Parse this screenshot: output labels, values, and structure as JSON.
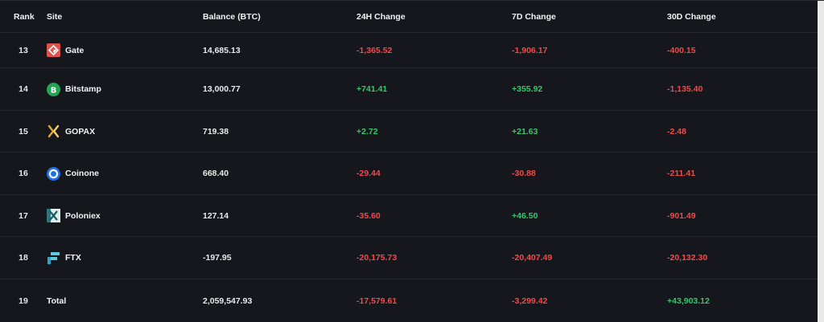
{
  "table": {
    "headers": {
      "rank": "Rank",
      "site": "Site",
      "balance": "Balance (BTC)",
      "change24h": "24H Change",
      "change7d": "7D Change",
      "change30d": "30D Change"
    },
    "rows": [
      {
        "rank": "13",
        "site": "Gate",
        "icon": "gate-icon",
        "balance": "14,685.13",
        "change24h": "-1,365.52",
        "change7d": "-1,906.17",
        "change30d": "-400.15"
      },
      {
        "rank": "14",
        "site": "Bitstamp",
        "icon": "bitstamp-icon",
        "balance": "13,000.77",
        "change24h": "+741.41",
        "change7d": "+355.92",
        "change30d": "-1,135.40"
      },
      {
        "rank": "15",
        "site": "GOPAX",
        "icon": "gopax-icon",
        "balance": "719.38",
        "change24h": "+2.72",
        "change7d": "+21.63",
        "change30d": "-2.48"
      },
      {
        "rank": "16",
        "site": "Coinone",
        "icon": "coinone-icon",
        "balance": "668.40",
        "change24h": "-29.44",
        "change7d": "-30.88",
        "change30d": "-211.41"
      },
      {
        "rank": "17",
        "site": "Poloniex",
        "icon": "poloniex-icon",
        "balance": "127.14",
        "change24h": "-35.60",
        "change7d": "+46.50",
        "change30d": "-901.49"
      },
      {
        "rank": "18",
        "site": "FTX",
        "icon": "ftx-icon",
        "balance": "-197.95",
        "change24h": "-20,175.73",
        "change7d": "-20,407.49",
        "change30d": "-20,132.30"
      },
      {
        "rank": "19",
        "site": "Total",
        "icon": "",
        "balance": "2,059,547.93",
        "change24h": "-17,579.61",
        "change7d": "-3,299.42",
        "change30d": "+43,903.12"
      }
    ]
  },
  "colors": {
    "background": "#16171c",
    "positive": "#34c76b",
    "negative": "#f14a4a",
    "text": "#f2f2f4"
  }
}
